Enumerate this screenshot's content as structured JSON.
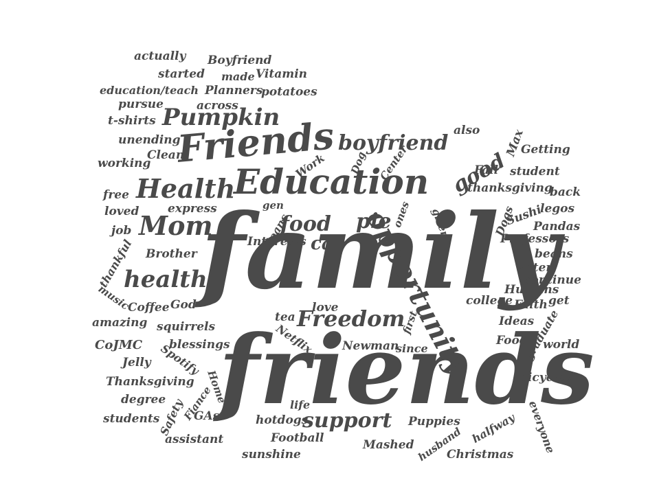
{
  "text_color": "#4a4a4a",
  "background": "#ffffff",
  "words": {
    "family": "family",
    "friends_lc": "friends",
    "friends_cap": "Friends",
    "education": "Education",
    "opportunity": "opportunity",
    "health_cap": "Health",
    "health_lc": "health",
    "mom": "Mom",
    "freedom": "Freedom",
    "pumpkin": "Pumpkin",
    "boyfriend_lc": "boyfriend",
    "support": "support",
    "good": "good",
    "food": "food",
    "pie": "pie",
    "cat": "cat",
    "actually": "actually",
    "boyfriend_cap": "Boyfriend",
    "started": "started",
    "made": "made",
    "vitamin": "Vitamin",
    "education_teach": "education/teach",
    "planners": "Planners",
    "potatoes": "potatoes",
    "pursue": "pursue",
    "across": "across",
    "t_shirts": "t-shirts",
    "unending": "unending",
    "clean": "Clean",
    "working": "working",
    "work": "Work",
    "dog": "Dog",
    "center": "Center",
    "also": "also",
    "max": "Max",
    "getting": "Getting",
    "fall": "Fall",
    "student": "student",
    "thanksgiving_lc": "thanksgiving",
    "back": "back",
    "free": "free",
    "loved": "loved",
    "express": "express",
    "gen": "gen",
    "loans": "loans",
    "ones": "ones",
    "given": "given",
    "dogs": "Dogs",
    "sushi": "Sushi",
    "legos": "legos",
    "pandas": "Pandas",
    "professors": "Professors",
    "job": "job",
    "interests": "Interests",
    "thankful": "thankful",
    "brother": "Brother",
    "water": "water",
    "beans": "beans",
    "continue": "continue",
    "humans": "Humans",
    "music": "music",
    "coffee": "Coffee",
    "god": "God",
    "love": "love",
    "college": "college",
    "faith": "Faith",
    "get": "get",
    "amazing": "amazing",
    "tea": "tea",
    "first": "first",
    "ideas": "Ideas",
    "graduate": "graduate",
    "squirrels": "squirrels",
    "netflix": "Netflix",
    "food_cap": "Food",
    "world": "world",
    "cojmc": "CoJMC",
    "blessings": "blessings",
    "newman": "Newman",
    "since": "since",
    "jelly": "Jelly",
    "spotify": "Spotify",
    "bicycles": "bicycles",
    "thanksgiving_cap": "Thanksgiving",
    "home": "Home",
    "fiance": "Fiance",
    "degree": "degree",
    "safety": "Safety",
    "life": "life",
    "students": "students",
    "gas": "GAs",
    "hotdogs": "hotdogs",
    "puppies": "Puppies",
    "everyone": "everyone",
    "halfway": "halfway",
    "assistant": "assistant",
    "football": "Football",
    "mashed": "Mashed",
    "husband": "husband",
    "christmas": "Christmas",
    "sunshine": "sunshine"
  }
}
